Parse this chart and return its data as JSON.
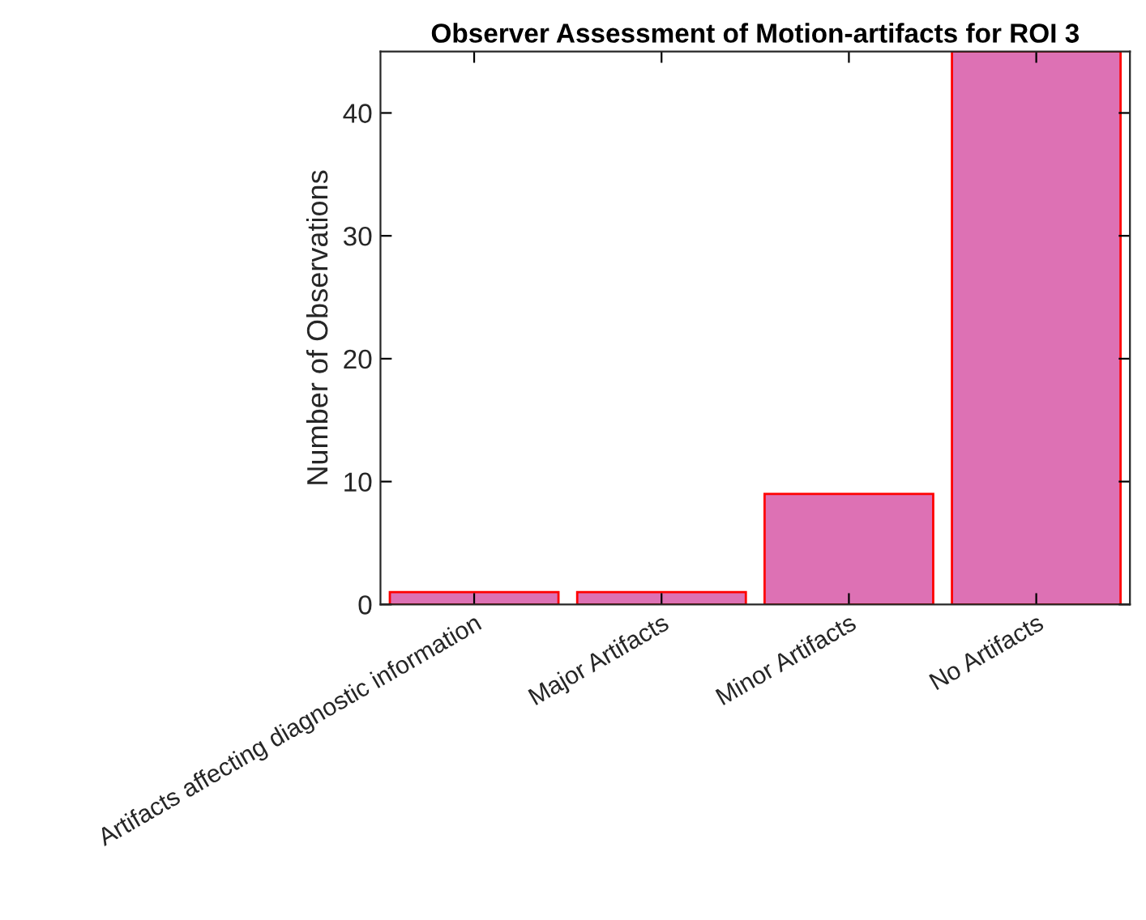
{
  "chart_data": {
    "type": "bar",
    "title": "Observer Assessment of Motion-artifacts for ROI 3",
    "ylabel": "Number of Observations",
    "categories": [
      "Artifacts affecting diagnostic information",
      "Major Artifacts",
      "Minor Artifacts",
      "No Artifacts"
    ],
    "values": [
      1,
      1,
      9,
      45
    ],
    "color": "#dd71b4",
    "ylim": [
      0,
      45
    ],
    "yticks": [
      0,
      10,
      20,
      30,
      40
    ],
    "grid": false
  }
}
